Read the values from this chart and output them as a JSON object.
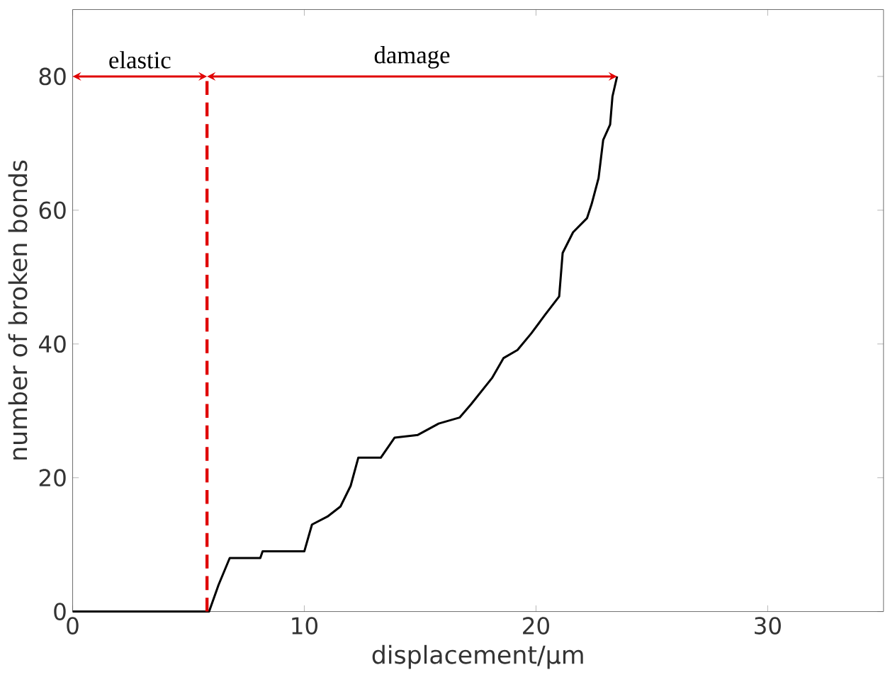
{
  "chart_data": {
    "type": "line",
    "xlabel": "displacement/μm",
    "ylabel": "number of broken bonds",
    "xlim": [
      0,
      35
    ],
    "ylim": [
      0,
      90
    ],
    "xticks": [
      0,
      10,
      20,
      30
    ],
    "yticks": [
      0,
      20,
      40,
      60,
      80
    ],
    "marker": "none",
    "line_style": "solid",
    "series": [
      {
        "color": "#000000",
        "x": [
          0,
          5.89,
          6.3,
          6.78,
          8.1,
          8.2,
          10.0,
          10.33,
          11.0,
          11.56,
          12.0,
          12.33,
          13.3,
          13.9,
          14.9,
          15.8,
          16.7,
          17.2,
          18.1,
          18.6,
          19.2,
          19.8,
          20.4,
          21.0,
          21.15,
          21.6,
          22.2,
          22.4,
          22.7,
          22.9,
          23.2,
          23.3,
          23.5
        ],
        "values": [
          0,
          0,
          4,
          8,
          8,
          9,
          9,
          13,
          14.2,
          15.7,
          18.8,
          23,
          23,
          26,
          26.4,
          28.1,
          29,
          31,
          34.9,
          37.9,
          39.1,
          41.6,
          44.4,
          47.1,
          53.6,
          56.7,
          58.8,
          60.9,
          64.8,
          70.5,
          72.8,
          77,
          80
        ]
      }
    ],
    "ref_lines": [
      {
        "axis": "x",
        "value": 5.8,
        "color": "#e00000",
        "line_style": "dashed"
      }
    ],
    "annotations": [
      "elastic",
      "damage"
    ]
  }
}
